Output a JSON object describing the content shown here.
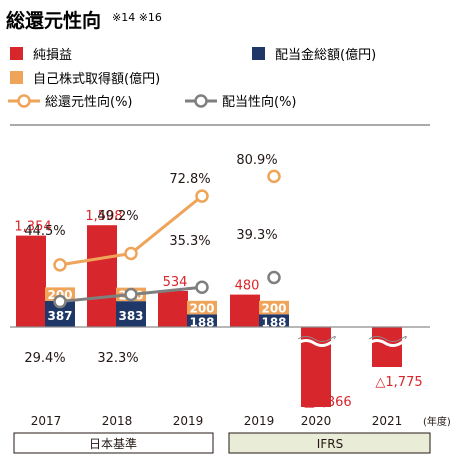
{
  "title": "総還元性向",
  "title_note": "※14 ※16",
  "legend": {
    "net_income": "純損益",
    "dividends": "配当金総額(億円)",
    "buyback": "自己株式取得額(億円)",
    "total_payout": "総還元性向(%)",
    "payout_ratio": "配当性向(%)"
  },
  "colors": {
    "net_income": "#d7262c",
    "dividends": "#1f3868",
    "buyback": "#efa45a",
    "total_payout": "#efa45a",
    "payout_ratio": "#7f7f7f",
    "ifrs_band": "#e9ecd6"
  },
  "unit_label": "(年度)",
  "standards": {
    "jgaap": "日本基準",
    "ifrs": "IFRS"
  },
  "chart_data": {
    "type": "bar",
    "categories": [
      "2017",
      "2018",
      "2019",
      "2019",
      "2020",
      "2021"
    ],
    "accounting_standard": [
      "日本基準",
      "日本基準",
      "日本基準",
      "IFRS",
      "IFRS",
      "IFRS"
    ],
    "series": [
      {
        "name": "純損益",
        "values": [
          1354,
          1508,
          534,
          480,
          -2866,
          -1775
        ],
        "labels": [
          "1,354",
          "1,508",
          "534",
          "480",
          "△2,866",
          "△1,775"
        ]
      },
      {
        "name": "配当金総額(億円)",
        "values": [
          387,
          383,
          188,
          188,
          null,
          null
        ],
        "labels": [
          "387",
          "383",
          "188",
          "188",
          "",
          ""
        ]
      },
      {
        "name": "自己株式取得額(億円)",
        "values": [
          200,
          200,
          200,
          200,
          null,
          null
        ],
        "labels": [
          "200",
          "200",
          "200",
          "200",
          "",
          ""
        ]
      },
      {
        "name": "総還元性向(%)",
        "values": [
          44.5,
          49.2,
          72.8,
          80.9,
          null,
          null
        ],
        "labels": [
          "44.5%",
          "49.2%",
          "72.8%",
          "80.9%",
          "",
          ""
        ]
      },
      {
        "name": "配当性向(%)",
        "values": [
          29.4,
          32.3,
          35.3,
          39.3,
          null,
          null
        ],
        "labels": [
          "29.4%",
          "32.3%",
          "35.3%",
          "39.3%",
          "",
          ""
        ]
      }
    ],
    "negative_bars_axis_break": true,
    "grid": false,
    "legend_position": "top-left"
  }
}
